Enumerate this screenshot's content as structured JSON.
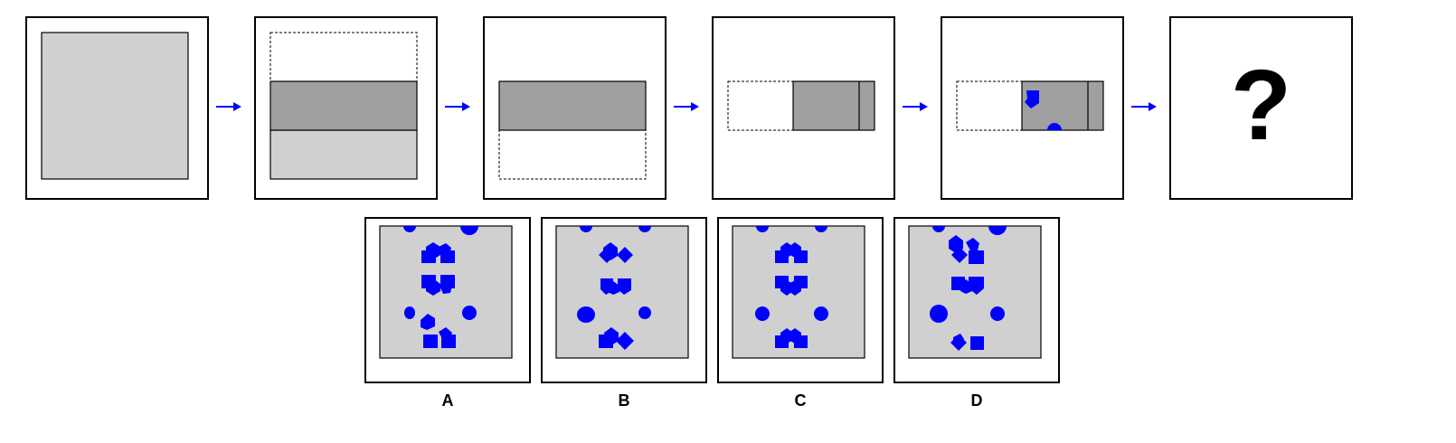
{
  "question_mark": "?",
  "colors": {
    "sheet": "#d0d0d0",
    "folded": "#a0a0a0",
    "hole": "#0000ff",
    "arrow": "#0000ff",
    "outline": "#000000"
  },
  "sequence": [
    {
      "name": "step-full-sheet"
    },
    {
      "name": "step-fold-bottom-up"
    },
    {
      "name": "step-folded-strip"
    },
    {
      "name": "step-fold-left-right"
    },
    {
      "name": "step-punched"
    },
    {
      "name": "step-unknown"
    }
  ],
  "options": [
    {
      "label": "A"
    },
    {
      "label": "B"
    },
    {
      "label": "C"
    },
    {
      "label": "D"
    }
  ]
}
